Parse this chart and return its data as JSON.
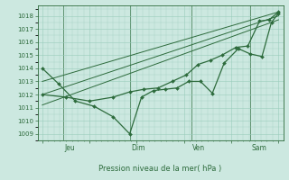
{
  "background_color": "#cce8e0",
  "grid_color": "#99ccbb",
  "line_color": "#2d6b3c",
  "title": "Pression niveau de la mer( hPa )",
  "ylim": [
    1008.5,
    1018.8
  ],
  "yticks": [
    1009,
    1010,
    1011,
    1012,
    1013,
    1014,
    1015,
    1016,
    1017,
    1018
  ],
  "day_labels": [
    "Jeu",
    "Dim",
    "Ven",
    "Sam"
  ],
  "day_positions": [
    0.09,
    0.37,
    0.63,
    0.88
  ],
  "series1_x": [
    0.0,
    0.07,
    0.14,
    0.22,
    0.3,
    0.37,
    0.42,
    0.47,
    0.52,
    0.57,
    0.62,
    0.67,
    0.72,
    0.77,
    0.83,
    0.88,
    0.93,
    0.97,
    1.0
  ],
  "series1_y": [
    1014.0,
    1012.8,
    1011.5,
    1011.1,
    1010.3,
    1009.0,
    1011.8,
    1012.3,
    1012.4,
    1012.5,
    1013.0,
    1013.0,
    1012.1,
    1014.4,
    1015.5,
    1015.1,
    1014.9,
    1017.5,
    1018.2
  ],
  "series2_x": [
    0.0,
    0.1,
    0.2,
    0.3,
    0.37,
    0.43,
    0.49,
    0.55,
    0.61,
    0.66,
    0.71,
    0.76,
    0.82,
    0.87,
    0.92,
    0.96,
    1.0
  ],
  "series2_y": [
    1012.0,
    1011.8,
    1011.5,
    1011.8,
    1012.2,
    1012.4,
    1012.5,
    1013.0,
    1013.5,
    1014.3,
    1014.6,
    1015.0,
    1015.6,
    1015.7,
    1017.6,
    1017.7,
    1018.3
  ],
  "trend_lines": [
    {
      "x": [
        0.0,
        1.0
      ],
      "y": [
        1013.0,
        1018.3
      ]
    },
    {
      "x": [
        0.0,
        1.0
      ],
      "y": [
        1012.0,
        1018.0
      ]
    },
    {
      "x": [
        0.0,
        1.0
      ],
      "y": [
        1011.2,
        1017.7
      ]
    }
  ]
}
